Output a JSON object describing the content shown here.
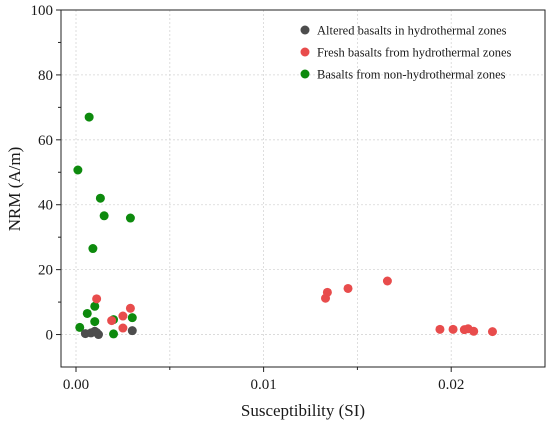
{
  "chart_data": {
    "type": "scatter",
    "xlabel": "Susceptibility (SI)",
    "ylabel": "NRM (A/m)",
    "xlim": [
      -0.0008,
      0.025
    ],
    "ylim": [
      -10,
      100
    ],
    "x_ticks": [
      0,
      0.01,
      0.02
    ],
    "x_tick_labels": [
      "0.00",
      "0.01",
      "0.02"
    ],
    "y_ticks": [
      0,
      20,
      40,
      60,
      80,
      100
    ],
    "y_tick_labels": [
      "0",
      "20",
      "40",
      "60",
      "80",
      "100"
    ],
    "grid": true,
    "legend_position": "top-right",
    "series": [
      {
        "name": "Altered basalts in hydrothermal zones",
        "color": "#4d4d4d",
        "points": [
          [
            0.0005,
            0.3
          ],
          [
            0.0008,
            0.5
          ],
          [
            0.001,
            1.0
          ],
          [
            0.0012,
            0.0
          ],
          [
            0.003,
            1.2
          ],
          [
            0.0011,
            0.6
          ]
        ]
      },
      {
        "name": "Fresh basalts from hydrothermal zones",
        "color": "#e84c4c",
        "points": [
          [
            0.0011,
            11.0
          ],
          [
            0.0019,
            4.3
          ],
          [
            0.0025,
            5.7
          ],
          [
            0.0025,
            2.0
          ],
          [
            0.0029,
            8.1
          ],
          [
            0.0133,
            11.2
          ],
          [
            0.0134,
            13.0
          ],
          [
            0.0145,
            14.2
          ],
          [
            0.0166,
            16.5
          ],
          [
            0.0194,
            1.6
          ],
          [
            0.0201,
            1.6
          ],
          [
            0.0207,
            1.5
          ],
          [
            0.0209,
            1.8
          ],
          [
            0.0212,
            1.0
          ],
          [
            0.0222,
            0.9
          ]
        ]
      },
      {
        "name": "Basalts from non-hydrothermal zones",
        "color": "#0d8a0d",
        "points": [
          [
            0.0001,
            50.7
          ],
          [
            0.0007,
            67.0
          ],
          [
            0.0013,
            42.0
          ],
          [
            0.0015,
            36.6
          ],
          [
            0.0009,
            26.5
          ],
          [
            0.0029,
            35.9
          ],
          [
            0.0002,
            2.2
          ],
          [
            0.0006,
            6.5
          ],
          [
            0.001,
            8.7
          ],
          [
            0.001,
            4.0
          ],
          [
            0.002,
            4.6
          ],
          [
            0.002,
            0.2
          ],
          [
            0.003,
            5.2
          ]
        ]
      }
    ]
  }
}
